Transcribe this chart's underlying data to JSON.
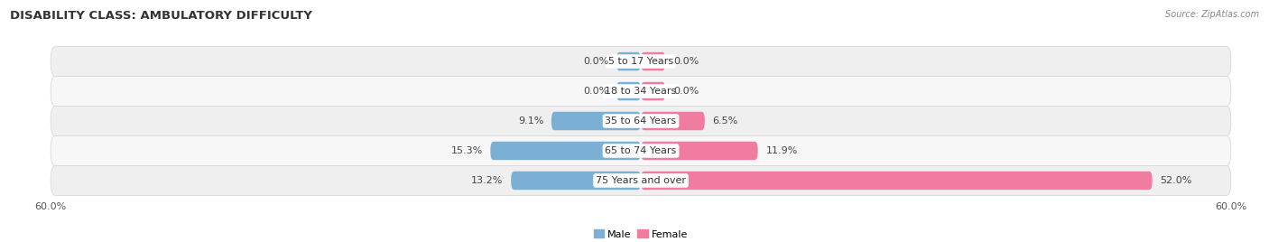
{
  "title": "DISABILITY CLASS: AMBULATORY DIFFICULTY",
  "source": "Source: ZipAtlas.com",
  "categories": [
    "5 to 17 Years",
    "18 to 34 Years",
    "35 to 64 Years",
    "65 to 74 Years",
    "75 Years and over"
  ],
  "male_values": [
    0.0,
    0.0,
    9.1,
    15.3,
    13.2
  ],
  "female_values": [
    0.0,
    0.0,
    6.5,
    11.9,
    52.0
  ],
  "max_val": 60.0,
  "min_bar_width": 2.5,
  "male_color": "#7bafd4",
  "female_color": "#f07ca0",
  "row_colors": [
    "#efefef",
    "#f7f7f7"
  ],
  "row_edge_color": "#d8d8d8",
  "title_fontsize": 9.5,
  "val_fontsize": 8,
  "cat_fontsize": 8,
  "axis_fontsize": 8,
  "legend_fontsize": 8
}
